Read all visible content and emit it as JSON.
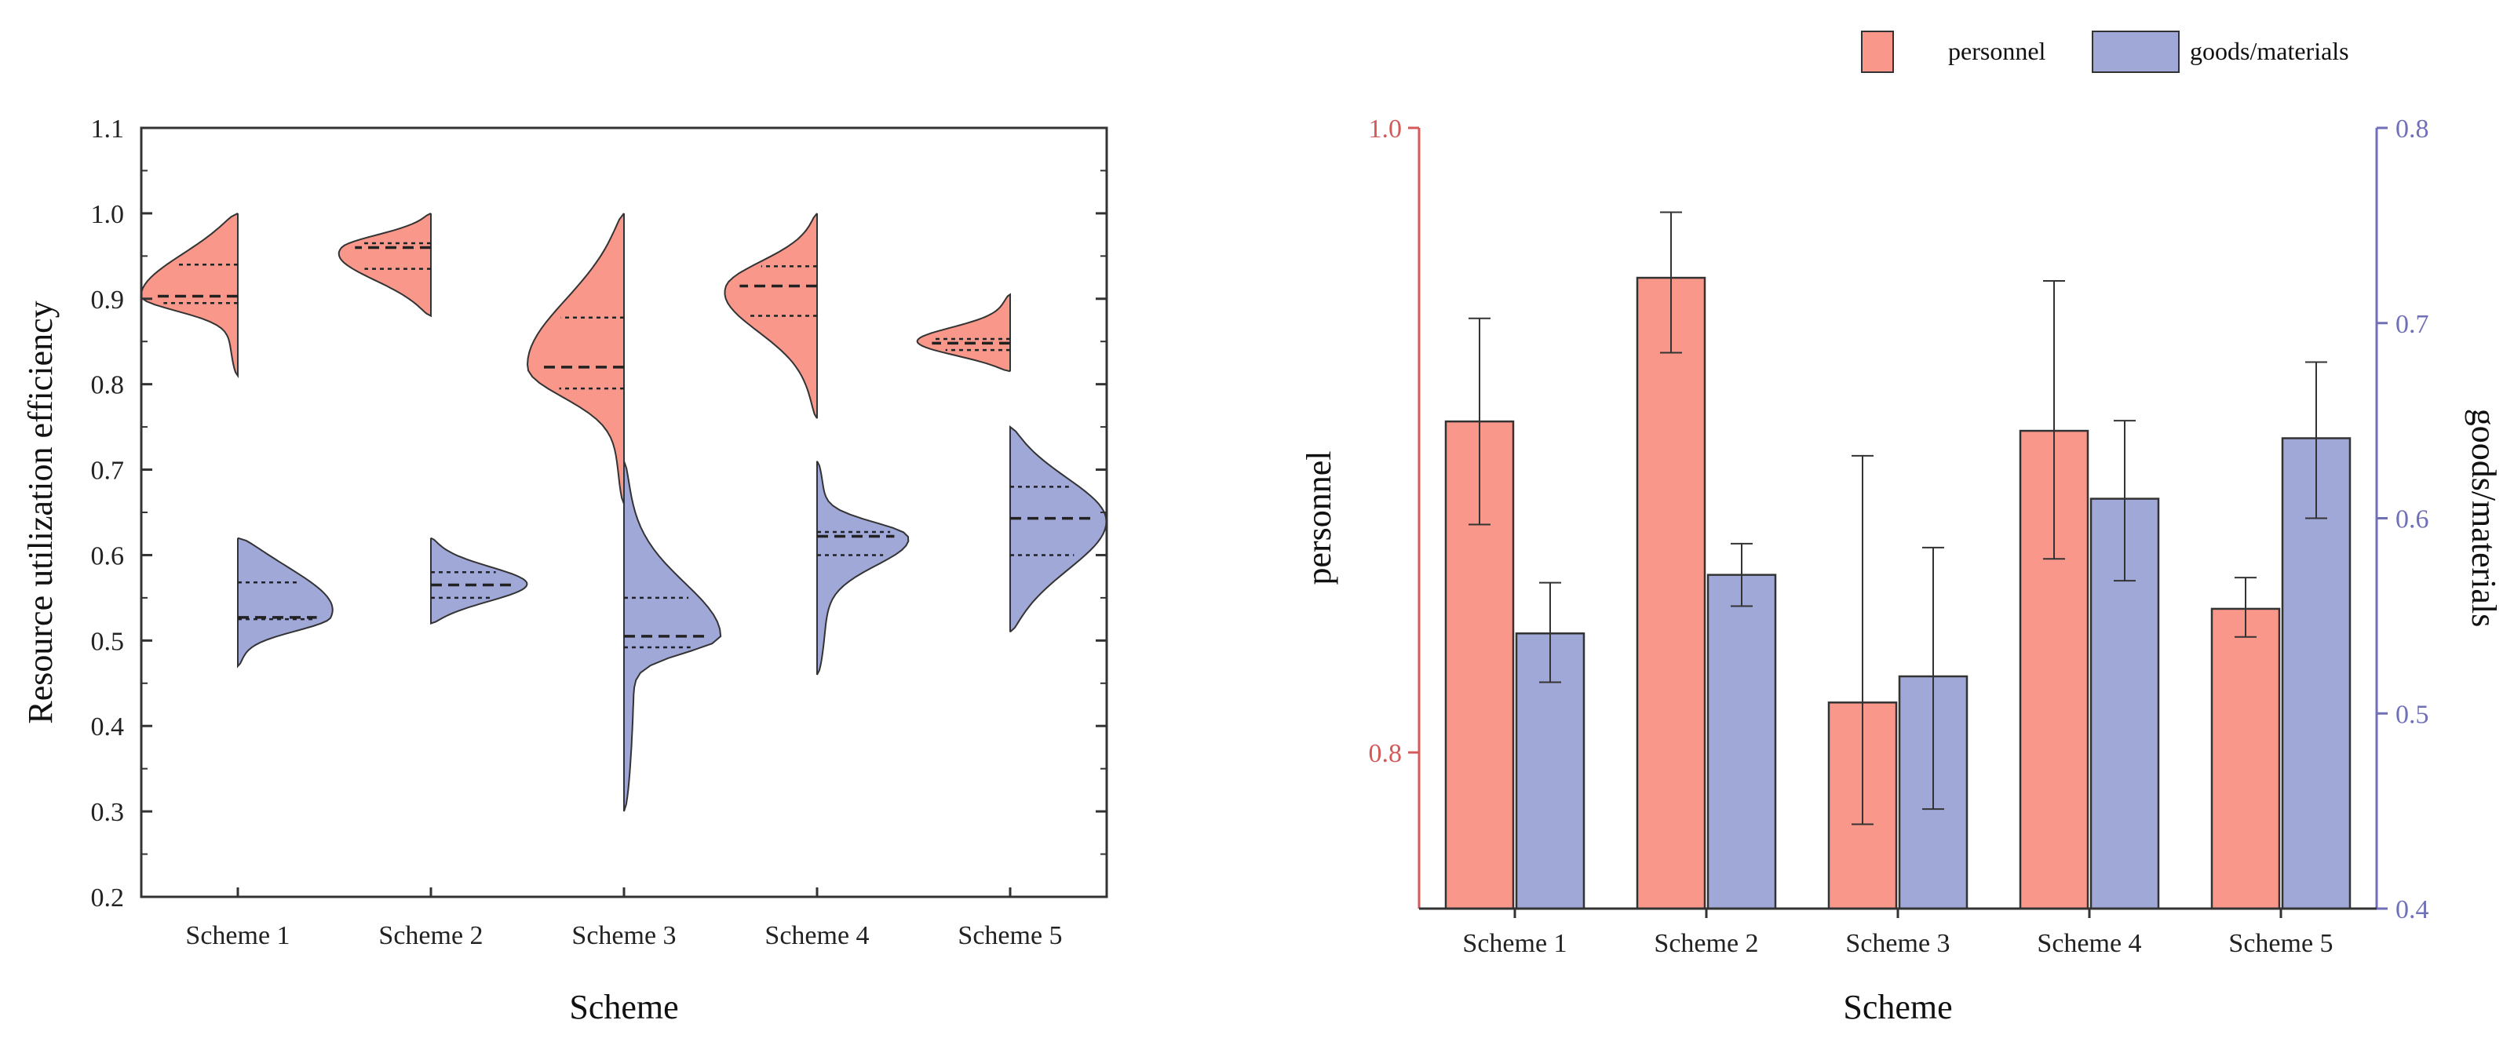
{
  "colors": {
    "personnel": "#f9978a",
    "goods": "#a0a8d8",
    "left_axis_color": "#d45a5a",
    "right_axis_color": "#7070b8",
    "outline": "#333333"
  },
  "legend": {
    "items": [
      {
        "label": "personnel",
        "color": "#f9978a"
      },
      {
        "label": "goods/materials",
        "color": "#a0a8d8"
      }
    ]
  },
  "chart_data": [
    {
      "type": "violin",
      "xlabel": "Scheme",
      "ylabel": "Resource utilization efficiency",
      "ylim": [
        0.2,
        1.1
      ],
      "yticks": [
        "0.2",
        "0.3",
        "0.4",
        "0.5",
        "0.6",
        "0.7",
        "0.8",
        "0.9",
        "1.0",
        "1.1"
      ],
      "categories": [
        "Scheme 1",
        "Scheme 2",
        "Scheme 3",
        "Scheme 4",
        "Scheme 5"
      ],
      "series": [
        {
          "name": "personnel",
          "side": "left",
          "distributions": [
            {
              "min": 0.81,
              "max": 1.0,
              "q1": 0.895,
              "median": 0.903,
              "q3": 0.94
            },
            {
              "min": 0.88,
              "max": 1.0,
              "q1": 0.935,
              "median": 0.96,
              "q3": 0.965
            },
            {
              "min": 0.66,
              "max": 1.0,
              "q1": 0.795,
              "median": 0.82,
              "q3": 0.878
            },
            {
              "min": 0.76,
              "max": 1.0,
              "q1": 0.88,
              "median": 0.915,
              "q3": 0.938
            },
            {
              "min": 0.815,
              "max": 0.905,
              "q1": 0.84,
              "median": 0.848,
              "q3": 0.853
            }
          ]
        },
        {
          "name": "goods/materials",
          "side": "right",
          "distributions": [
            {
              "min": 0.47,
              "max": 0.62,
              "q1": 0.525,
              "median": 0.527,
              "q3": 0.568
            },
            {
              "min": 0.52,
              "max": 0.62,
              "q1": 0.55,
              "median": 0.565,
              "q3": 0.58
            },
            {
              "min": 0.3,
              "max": 0.71,
              "q1": 0.492,
              "median": 0.505,
              "q3": 0.55
            },
            {
              "min": 0.46,
              "max": 0.71,
              "q1": 0.6,
              "median": 0.622,
              "q3": 0.627
            },
            {
              "min": 0.51,
              "max": 0.75,
              "q1": 0.6,
              "median": 0.643,
              "q3": 0.68
            }
          ]
        }
      ]
    },
    {
      "type": "bar",
      "xlabel": "Scheme",
      "ylabel_left": "personnel",
      "ylabel_right": "goods/materials",
      "ylim_left": [
        0.75,
        1.0
      ],
      "ylim_right": [
        0.4,
        0.8
      ],
      "yticks_left": [
        "0.8",
        "1.0"
      ],
      "yticks_right": [
        "0.4",
        "0.5",
        "0.6",
        "0.7",
        "0.8"
      ],
      "categories": [
        "Scheme 1",
        "Scheme 2",
        "Scheme 3",
        "Scheme 4",
        "Scheme 5"
      ],
      "series": [
        {
          "name": "personnel",
          "axis": "left",
          "values": [
            0.906,
            0.952,
            0.816,
            0.903,
            0.846
          ],
          "error_low": [
            0.873,
            0.928,
            0.777,
            0.862,
            0.837
          ],
          "error_high": [
            0.939,
            0.973,
            0.895,
            0.951,
            0.856
          ]
        },
        {
          "name": "goods/materials",
          "axis": "right",
          "values": [
            0.541,
            0.571,
            0.519,
            0.61,
            0.641
          ],
          "error_low": [
            0.516,
            0.555,
            0.451,
            0.568,
            0.6
          ],
          "error_high": [
            0.567,
            0.587,
            0.585,
            0.65,
            0.68
          ]
        }
      ]
    }
  ]
}
